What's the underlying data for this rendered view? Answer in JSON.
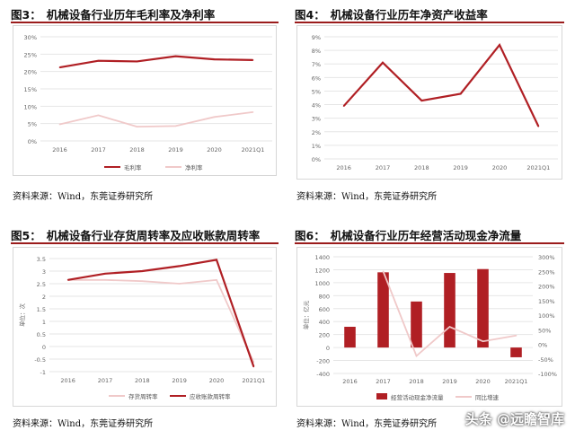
{
  "panels": [
    {
      "fig_label": "图3：",
      "title": "机械设备行业历年毛利率及净利率",
      "source": "资料来源：Wind，东莞证券研究所"
    },
    {
      "fig_label": "图4：",
      "title": "机械设备行业历年净资产收益率",
      "source": "资料来源：Wind，东莞证券研究所"
    },
    {
      "fig_label": "图5：",
      "title": "机械设备行业存货周转率及应收账款周转率",
      "source": "资料来源：Wind，东莞证券研究所"
    },
    {
      "fig_label": "图6：",
      "title": "机械设备行业历年经营活动现金净流量",
      "source": "资料来源：Wind，东莞证券研究所"
    }
  ],
  "watermark": "头条 @远瞻智库",
  "colors": {
    "dark_red": "#b01f24",
    "light_pink": "#f0c9c9",
    "grid": "#e6e6e6",
    "accent_rule": "#9b1c1c"
  },
  "chart_data": [
    {
      "type": "line",
      "x": [
        "2016",
        "2017",
        "2018",
        "2019",
        "2020",
        "2021Q1"
      ],
      "series": [
        {
          "name": "毛利率",
          "values": [
            21.2,
            23.1,
            22.9,
            24.4,
            23.5,
            23.3
          ],
          "color": "#b01f24"
        },
        {
          "name": "净利率",
          "values": [
            4.8,
            7.4,
            4.1,
            4.3,
            6.9,
            8.3
          ],
          "color": "#f0c9c9"
        }
      ],
      "y_ticks": [
        "0%",
        "5%",
        "10%",
        "15%",
        "20%",
        "25%",
        "30%"
      ],
      "ylim": [
        0,
        30
      ],
      "legend": "bottom",
      "grid": true
    },
    {
      "type": "line",
      "x": [
        "2016",
        "2017",
        "2018",
        "2019",
        "2020",
        "2021Q1"
      ],
      "series": [
        {
          "values": [
            3.9,
            7.1,
            4.3,
            4.8,
            8.4,
            2.4
          ],
          "color": "#b01f24"
        }
      ],
      "y_ticks": [
        "0%",
        "1%",
        "2%",
        "3%",
        "4%",
        "5%",
        "6%",
        "7%",
        "8%",
        "9%"
      ],
      "ylim": [
        0,
        9
      ],
      "grid": true
    },
    {
      "type": "line",
      "x": [
        "2016",
        "2017",
        "2018",
        "2019",
        "2020",
        "2021Q1"
      ],
      "series": [
        {
          "name": "存货周转率",
          "values": [
            2.65,
            2.65,
            2.6,
            2.5,
            2.65,
            -0.62
          ],
          "color": "#f0c9c9"
        },
        {
          "name": "应收账款周转率",
          "values": [
            2.65,
            2.9,
            3.0,
            3.2,
            3.45,
            -0.8
          ],
          "color": "#b01f24"
        }
      ],
      "y_ticks": [
        "-1",
        "-0.5",
        "0",
        "0.5",
        "1",
        "1.5",
        "2",
        "2.5",
        "3",
        "3.5"
      ],
      "ylim": [
        -1,
        3.5
      ],
      "ylabel": "单位：次",
      "legend": "bottom",
      "grid": true
    },
    {
      "type": "bar",
      "x": [
        "2016",
        "2017",
        "2018",
        "2019",
        "2020",
        "2021Q1"
      ],
      "series": [
        {
          "name": "经营活动现金净流量",
          "values": [
            320,
            1160,
            710,
            1150,
            1210,
            -150
          ],
          "color": "#b01f24",
          "axis": "left"
        },
        {
          "name": "同比增速",
          "values": [
            null,
            250,
            -40,
            60,
            10,
            30
          ],
          "color": "#f0c9c9",
          "axis": "right",
          "type": "line"
        }
      ],
      "y_ticks_left": [
        "-400",
        "-200",
        "0",
        "200",
        "400",
        "600",
        "800",
        "1000",
        "1200",
        "1400"
      ],
      "y_ticks_right": [
        "-100%",
        "-50%",
        "0%",
        "50%",
        "100%",
        "150%",
        "200%",
        "250%",
        "300%"
      ],
      "ylim_left": [
        -400,
        1400
      ],
      "ylim_right": [
        -100,
        300
      ],
      "ylabel": "单位：亿元",
      "legend": "bottom",
      "grid": true
    }
  ]
}
